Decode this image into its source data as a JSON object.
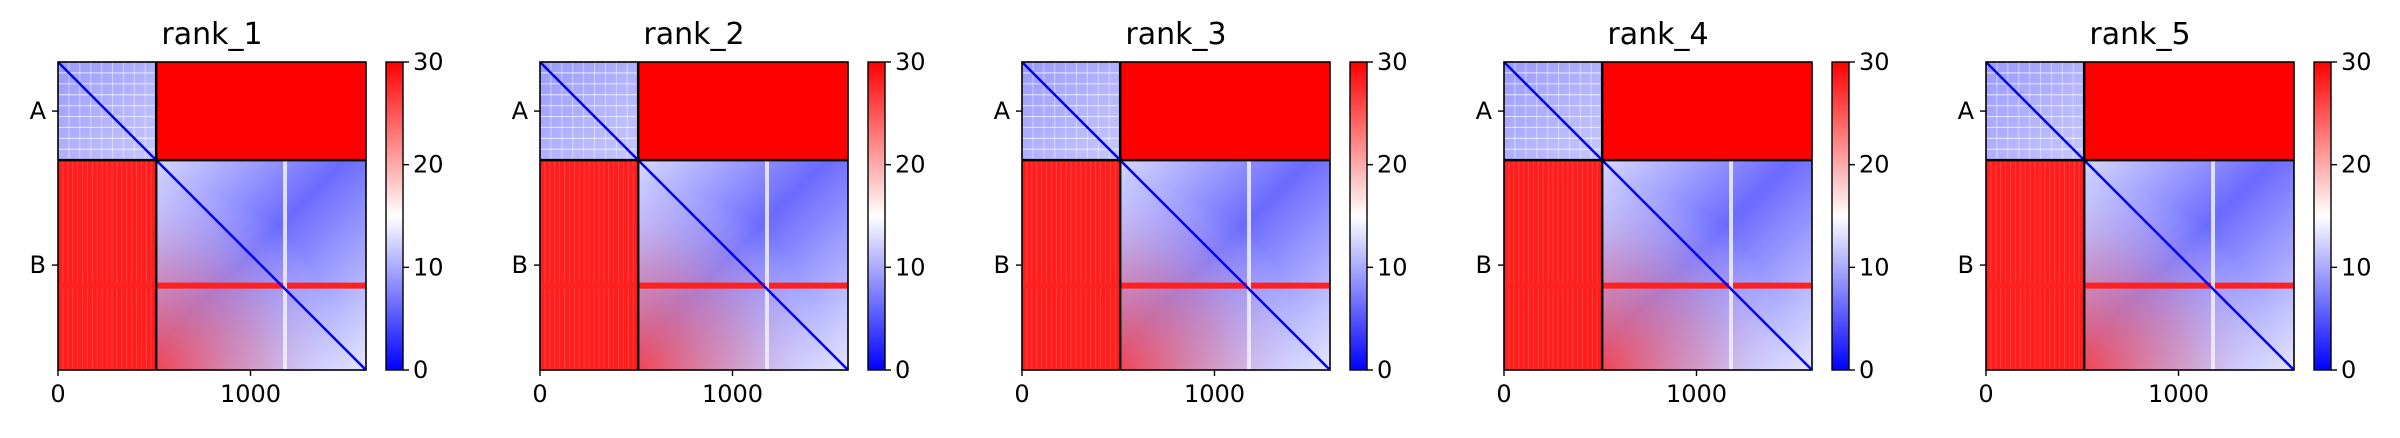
{
  "chart_data": [
    {
      "type": "heatmap",
      "title": "rank_1",
      "x_ticks": [
        "0",
        "1000"
      ],
      "x_tick_values": [
        0,
        1000
      ],
      "xlim": [
        0,
        1600
      ],
      "y_tick_labels": [
        "A",
        "B"
      ],
      "chains": [
        {
          "name": "A",
          "length": 510
        },
        {
          "name": "B",
          "length": 1090
        }
      ],
      "colorbar": {
        "min": 0,
        "max": 30,
        "ticks": [
          "0",
          "10",
          "20",
          "30"
        ],
        "colormap": [
          "#0000ff",
          "#ffffff",
          "#ff0000"
        ]
      }
    },
    {
      "type": "heatmap",
      "title": "rank_2",
      "x_ticks": [
        "0",
        "1000"
      ],
      "x_tick_values": [
        0,
        1000
      ],
      "xlim": [
        0,
        1600
      ],
      "y_tick_labels": [
        "A",
        "B"
      ],
      "chains": [
        {
          "name": "A",
          "length": 510
        },
        {
          "name": "B",
          "length": 1090
        }
      ],
      "colorbar": {
        "min": 0,
        "max": 30,
        "ticks": [
          "0",
          "10",
          "20",
          "30"
        ],
        "colormap": [
          "#0000ff",
          "#ffffff",
          "#ff0000"
        ]
      }
    },
    {
      "type": "heatmap",
      "title": "rank_3",
      "x_ticks": [
        "0",
        "1000"
      ],
      "x_tick_values": [
        0,
        1000
      ],
      "xlim": [
        0,
        1600
      ],
      "y_tick_labels": [
        "A",
        "B"
      ],
      "chains": [
        {
          "name": "A",
          "length": 510
        },
        {
          "name": "B",
          "length": 1090
        }
      ],
      "colorbar": {
        "min": 0,
        "max": 30,
        "ticks": [
          "0",
          "10",
          "20",
          "30"
        ],
        "colormap": [
          "#0000ff",
          "#ffffff",
          "#ff0000"
        ]
      }
    },
    {
      "type": "heatmap",
      "title": "rank_4",
      "x_ticks": [
        "0",
        "1000"
      ],
      "x_tick_values": [
        0,
        1000
      ],
      "xlim": [
        0,
        1600
      ],
      "y_tick_labels": [
        "A",
        "B"
      ],
      "chains": [
        {
          "name": "A",
          "length": 510
        },
        {
          "name": "B",
          "length": 1090
        }
      ],
      "colorbar": {
        "min": 0,
        "max": 30,
        "ticks": [
          "0",
          "10",
          "20",
          "30"
        ],
        "colormap": [
          "#0000ff",
          "#ffffff",
          "#ff0000"
        ]
      }
    },
    {
      "type": "heatmap",
      "title": "rank_5",
      "x_ticks": [
        "0",
        "1000"
      ],
      "x_tick_values": [
        0,
        1000
      ],
      "xlim": [
        0,
        1600
      ],
      "y_tick_labels": [
        "A",
        "B"
      ],
      "chains": [
        {
          "name": "A",
          "length": 510
        },
        {
          "name": "B",
          "length": 1090
        }
      ],
      "colorbar": {
        "min": 0,
        "max": 30,
        "ticks": [
          "0",
          "10",
          "20",
          "30"
        ],
        "colormap": [
          "#0000ff",
          "#ffffff",
          "#ff0000"
        ]
      }
    }
  ]
}
